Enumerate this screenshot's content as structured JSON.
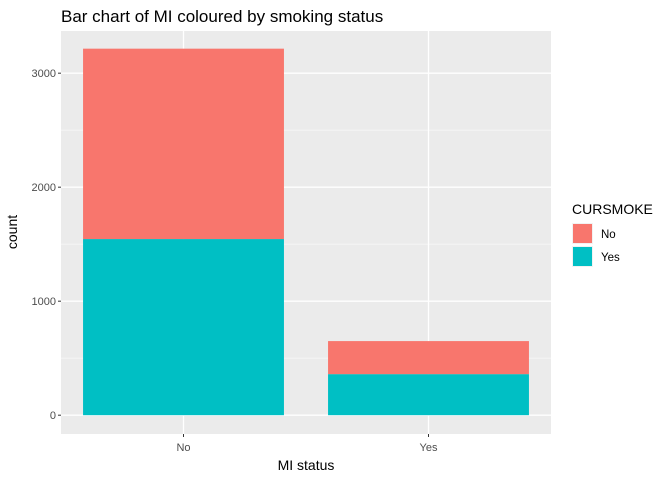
{
  "chart_data": {
    "type": "bar",
    "stacked": true,
    "title": "Bar chart of MI coloured by smoking status",
    "xlabel": "MI status",
    "ylabel": "count",
    "categories": [
      "No",
      "Yes"
    ],
    "series": [
      {
        "name": "No",
        "color": "#F8766D",
        "values": [
          1670,
          290
        ]
      },
      {
        "name": "Yes",
        "color": "#00BFC4",
        "values": [
          1545,
          360
        ]
      }
    ],
    "totals": [
      3215,
      650
    ],
    "ylim": [
      -165,
      3370
    ],
    "yticks": [
      0,
      1000,
      2000,
      3000
    ],
    "ytick_labels": [
      "0",
      "1000",
      "2000",
      "3000"
    ],
    "grid": true,
    "legend": {
      "title": "CURSMOKE",
      "placement": "right",
      "entries": [
        "No",
        "Yes"
      ]
    },
    "panel_background": "#EBEBEB"
  }
}
